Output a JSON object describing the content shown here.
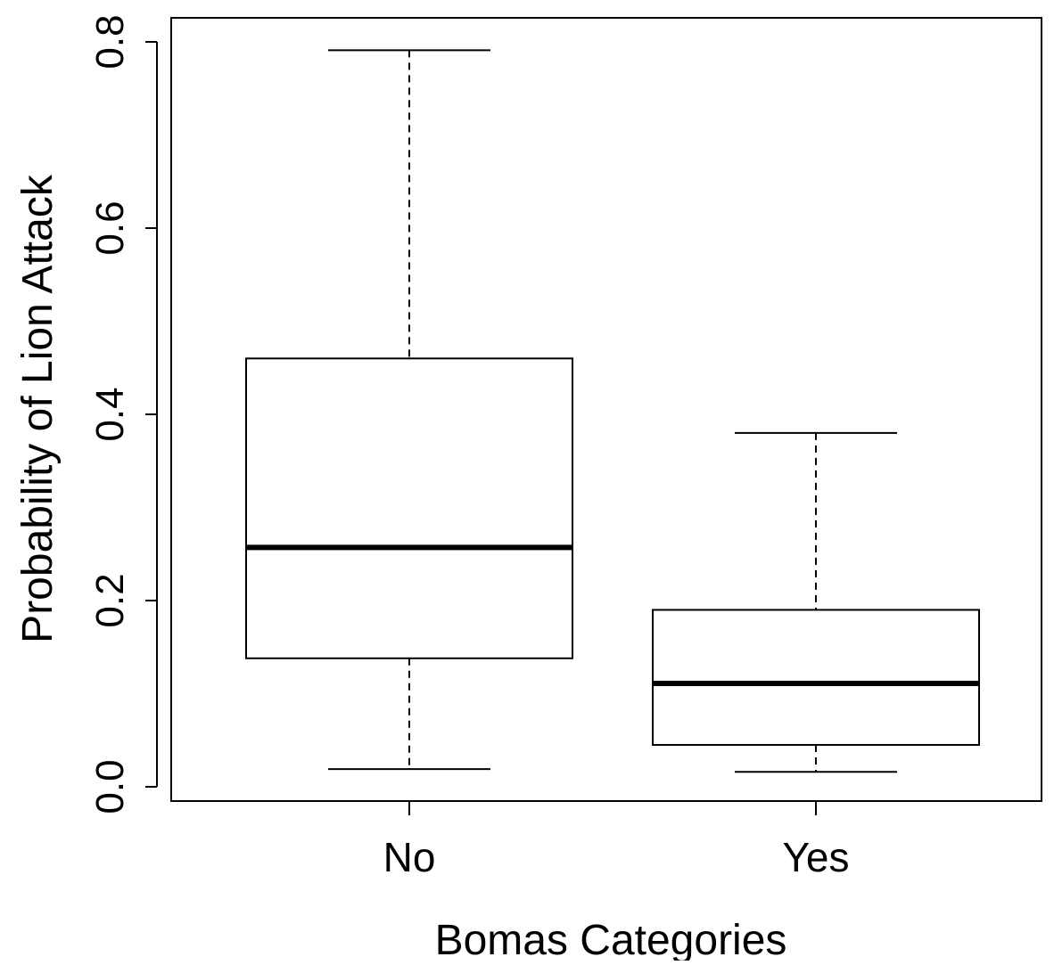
{
  "chart_data": {
    "type": "box",
    "title": "",
    "xlabel": "Bomas Categories",
    "ylabel": "Probability of Lion Attack",
    "ylim": [
      -0.03,
      0.825
    ],
    "yticks": [
      0.0,
      0.2,
      0.4,
      0.6,
      0.8
    ],
    "ytick_labels": [
      "0.0",
      "0.2",
      "0.4",
      "0.6",
      "0.8"
    ],
    "grid": false,
    "legend": "none",
    "categories": [
      "No",
      "Yes"
    ],
    "boxes": [
      {
        "category": "No",
        "whisker_low": 0.019,
        "q1": 0.138,
        "median": 0.257,
        "q3": 0.46,
        "whisker_high": 0.791
      },
      {
        "category": "Yes",
        "whisker_low": 0.016,
        "q1": 0.045,
        "median": 0.111,
        "q3": 0.19,
        "whisker_high": 0.38
      }
    ],
    "colors": {
      "line": "#000000",
      "box_fill": "#ffffff",
      "background": "#ffffff"
    }
  }
}
